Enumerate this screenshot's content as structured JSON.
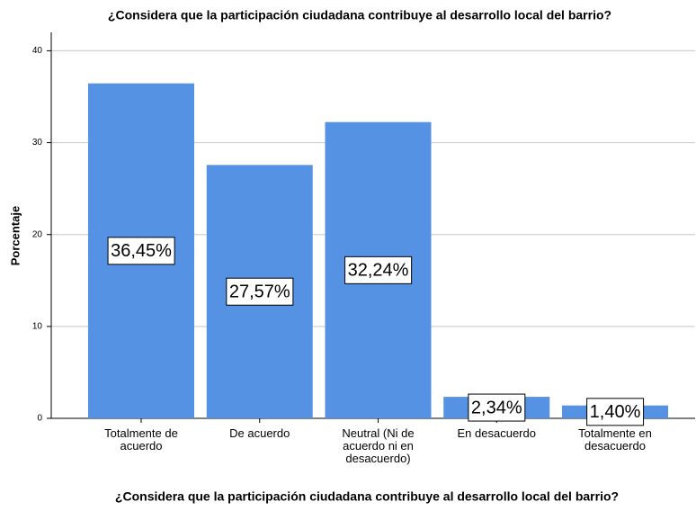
{
  "chart_data": {
    "type": "bar",
    "title": "¿Considera que la participación ciudadana contribuye al desarrollo local del barrio?",
    "x_label": "¿Considera que la participación ciudadana contribuye al desarrollo local del barrio?",
    "y_label": "Porcentaje",
    "categories": [
      "Totalmente de acuerdo",
      "De acuerdo",
      "Neutral (Ni de acuerdo ni en desacuerdo)",
      "En desacuerdo",
      "Totalmente en desacuerdo"
    ],
    "values": [
      36.45,
      27.57,
      32.24,
      2.34,
      1.4
    ],
    "value_labels": [
      "36,45%",
      "27,57%",
      "32,24%",
      "2,34%",
      "1,40%"
    ],
    "color": "#5592e4",
    "ylim": [
      0,
      42
    ],
    "yticks": [
      0,
      10,
      20,
      30,
      40
    ],
    "grid": true
  }
}
